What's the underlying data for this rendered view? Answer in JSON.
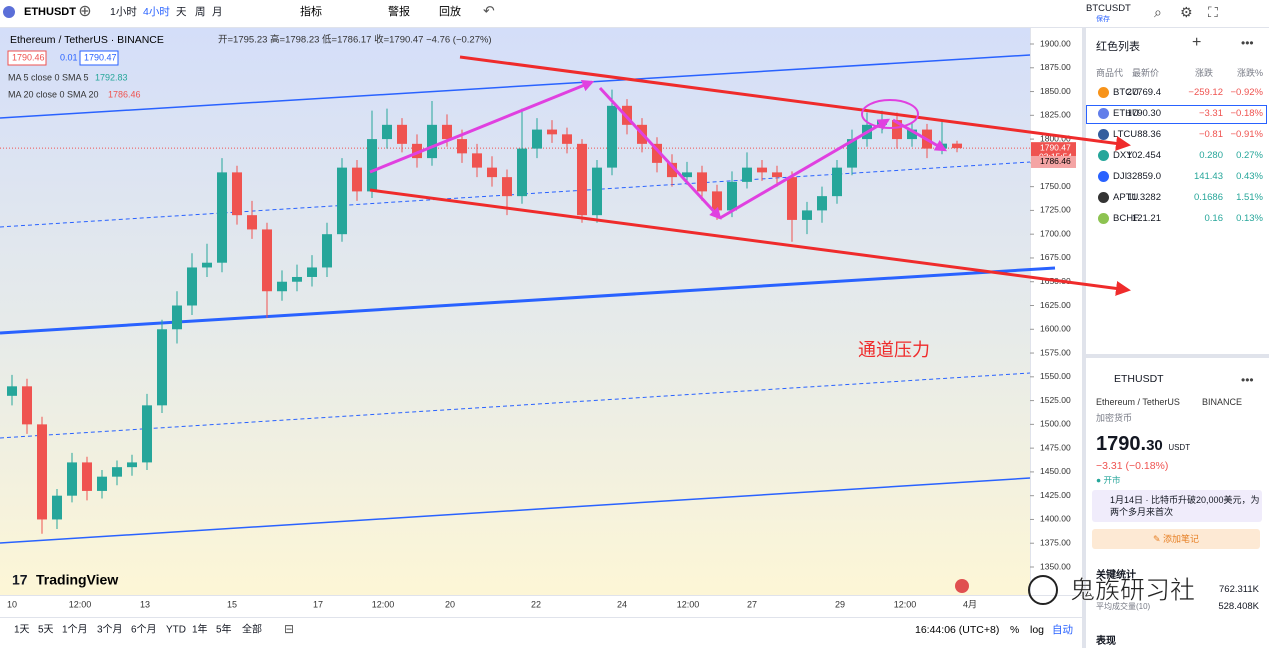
{
  "toolbar": {
    "symbol": "ETHUSDT",
    "intervals": [
      "1小时",
      "4小时",
      "天",
      "周",
      "月"
    ],
    "indicators": "指标",
    "alerts": "警报",
    "replay": "回放",
    "right_symbol": "BTCUSDT",
    "save": "保存"
  },
  "chart": {
    "type": "candlestick",
    "title": "Ethereum / TetherUS · BINANCE",
    "ohlc_text": "开=1795.23 高=1798.23 低=1786.17 收=1790.47 −4.76 (−0.27%)",
    "boxes": [
      "1790.46",
      "0.01",
      "1790.47"
    ],
    "ma": [
      {
        "name": "MA 5 close 0 SMA 5",
        "value": "1792.83",
        "color": "#26a69a"
      },
      {
        "name": "MA 20 close 0 SMA 20",
        "value": "1786.46",
        "color": "#ef5350"
      }
    ],
    "ylim": [
      1350,
      1900
    ],
    "yticks": [
      {
        "value": 1900,
        "label": "1900.00"
      },
      {
        "value": 1875,
        "label": "1875.00"
      },
      {
        "value": 1850,
        "label": "1850.00"
      },
      {
        "value": 1825,
        "label": "1825.00"
      },
      {
        "value": 1800,
        "label": "1800.00"
      },
      {
        "value": 1775,
        "label": "1775.00"
      },
      {
        "value": 1750,
        "label": "1750.00"
      },
      {
        "value": 1725,
        "label": "1725.00"
      },
      {
        "value": 1700,
        "label": "1700.00"
      },
      {
        "value": 1675,
        "label": "1675.00"
      },
      {
        "value": 1650,
        "label": "1650.00"
      },
      {
        "value": 1625,
        "label": "1625.00"
      },
      {
        "value": 1600,
        "label": "1600.00"
      },
      {
        "value": 1575,
        "label": "1575.00"
      },
      {
        "value": 1550,
        "label": "1550.00"
      },
      {
        "value": 1525,
        "label": "1525.00"
      },
      {
        "value": 1500,
        "label": "1500.00"
      },
      {
        "value": 1475,
        "label": "1475.00"
      },
      {
        "value": 1450,
        "label": "1450.00"
      },
      {
        "value": 1425,
        "label": "1425.00"
      },
      {
        "value": 1400,
        "label": "1400.00"
      },
      {
        "value": 1375,
        "label": "1375.00"
      },
      {
        "value": 1350,
        "label": "1350.00"
      }
    ],
    "last_price": {
      "value": 1790.47,
      "label": "1790.47"
    },
    "countdown": "03:15:54",
    "ma20_tag": {
      "value": 1786.46,
      "label": "1786.46"
    },
    "xticks": [
      "10",
      "12:00",
      "13",
      "15",
      "17",
      "12:00",
      "20",
      "22",
      "24",
      "12:00",
      "27",
      "29",
      "12:00",
      "4月"
    ],
    "up_color": "#26a69a",
    "down_color": "#ef5350",
    "candles": [
      [
        1530,
        1552,
        1520,
        1540
      ],
      [
        1540,
        1548,
        1490,
        1500
      ],
      [
        1500,
        1508,
        1385,
        1400
      ],
      [
        1400,
        1432,
        1390,
        1425
      ],
      [
        1425,
        1470,
        1418,
        1460
      ],
      [
        1460,
        1466,
        1420,
        1430
      ],
      [
        1430,
        1452,
        1422,
        1445
      ],
      [
        1445,
        1462,
        1436,
        1455
      ],
      [
        1455,
        1468,
        1446,
        1460
      ],
      [
        1460,
        1532,
        1452,
        1520
      ],
      [
        1520,
        1610,
        1512,
        1600
      ],
      [
        1600,
        1640,
        1585,
        1625
      ],
      [
        1625,
        1680,
        1615,
        1665
      ],
      [
        1665,
        1690,
        1655,
        1670
      ],
      [
        1670,
        1780,
        1660,
        1765
      ],
      [
        1765,
        1772,
        1710,
        1720
      ],
      [
        1720,
        1735,
        1695,
        1705
      ],
      [
        1705,
        1712,
        1612,
        1640
      ],
      [
        1640,
        1662,
        1630,
        1650
      ],
      [
        1650,
        1668,
        1640,
        1655
      ],
      [
        1655,
        1678,
        1645,
        1665
      ],
      [
        1665,
        1712,
        1655,
        1700
      ],
      [
        1700,
        1780,
        1692,
        1770
      ],
      [
        1770,
        1778,
        1735,
        1745
      ],
      [
        1745,
        1830,
        1738,
        1800
      ],
      [
        1800,
        1832,
        1790,
        1815
      ],
      [
        1815,
        1822,
        1786,
        1795
      ],
      [
        1795,
        1805,
        1770,
        1780
      ],
      [
        1780,
        1840,
        1772,
        1815
      ],
      [
        1815,
        1826,
        1792,
        1800
      ],
      [
        1800,
        1810,
        1775,
        1785
      ],
      [
        1785,
        1795,
        1760,
        1770
      ],
      [
        1770,
        1782,
        1750,
        1760
      ],
      [
        1760,
        1768,
        1720,
        1740
      ],
      [
        1740,
        1832,
        1732,
        1790
      ],
      [
        1790,
        1822,
        1780,
        1810
      ],
      [
        1810,
        1820,
        1796,
        1805
      ],
      [
        1805,
        1812,
        1785,
        1795
      ],
      [
        1795,
        1800,
        1712,
        1720
      ],
      [
        1720,
        1778,
        1712,
        1770
      ],
      [
        1770,
        1852,
        1762,
        1835
      ],
      [
        1835,
        1842,
        1805,
        1815
      ],
      [
        1815,
        1822,
        1786,
        1795
      ],
      [
        1795,
        1802,
        1765,
        1775
      ],
      [
        1775,
        1784,
        1750,
        1760
      ],
      [
        1760,
        1776,
        1752,
        1765
      ],
      [
        1765,
        1772,
        1735,
        1745
      ],
      [
        1745,
        1752,
        1715,
        1725
      ],
      [
        1725,
        1766,
        1718,
        1755
      ],
      [
        1755,
        1786,
        1748,
        1770
      ],
      [
        1770,
        1778,
        1756,
        1765
      ],
      [
        1765,
        1772,
        1750,
        1760
      ],
      [
        1760,
        1766,
        1692,
        1715
      ],
      [
        1715,
        1734,
        1700,
        1725
      ],
      [
        1725,
        1750,
        1712,
        1740
      ],
      [
        1740,
        1778,
        1732,
        1770
      ],
      [
        1770,
        1810,
        1762,
        1800
      ],
      [
        1800,
        1828,
        1792,
        1815
      ],
      [
        1815,
        1830,
        1806,
        1820
      ],
      [
        1820,
        1828,
        1790,
        1800
      ],
      [
        1800,
        1818,
        1792,
        1810
      ],
      [
        1810,
        1816,
        1780,
        1790
      ],
      [
        1790,
        1820,
        1784,
        1795.23
      ],
      [
        1795.23,
        1798.23,
        1786.17,
        1790.47
      ]
    ],
    "annotation": "通道压力",
    "logo": "TradingView"
  },
  "bottom_bar": {
    "ranges": [
      "1天",
      "5天",
      "1个月",
      "3个月",
      "6个月",
      "YTD",
      "1年",
      "5年",
      "全部"
    ],
    "time": "16:44:06 (UTC+8)",
    "percent": "%",
    "log": "log",
    "auto": "自动"
  },
  "watchlist": {
    "title": "红色列表",
    "headers": [
      "商品代",
      "最新价",
      "涨跌",
      "涨跌%"
    ],
    "rows": [
      [
        "BTCU",
        "27769.4",
        "−259.12",
        "−0.92%"
      ],
      [
        "ETHU",
        "1790.30",
        "−3.31",
        "−0.18%"
      ],
      [
        "LTCU",
        "88.36",
        "−0.81",
        "−0.91%"
      ],
      [
        "DXY",
        "102.454",
        "0.280",
        "0.27%"
      ],
      [
        "DJI",
        "32859.0",
        "141.43",
        "0.43%"
      ],
      [
        "APTU",
        "11.3282",
        "0.1686",
        "1.51%"
      ],
      [
        "BCHF",
        "121.21",
        "0.16",
        "0.13%"
      ]
    ]
  },
  "details": {
    "symbol": "ETHUSDT",
    "name": "Ethereum / TetherUS",
    "exchange": "BINANCE",
    "category": "加密货币",
    "price_main": "1790.",
    "price_decimals": "30",
    "currency": "USDT",
    "change": "−3.31 (−0.18%)",
    "status": "开市",
    "news": "1月14日 · 比特币升破20,000美元，为两个多月来首次",
    "add_note": "添加笔记",
    "key_stats": "关键统计",
    "stat1": "762.311K",
    "stat2_label": "平均成交量(10)",
    "stat2": "528.408K",
    "performance": "表现"
  },
  "watermark": "鬼族研习社"
}
